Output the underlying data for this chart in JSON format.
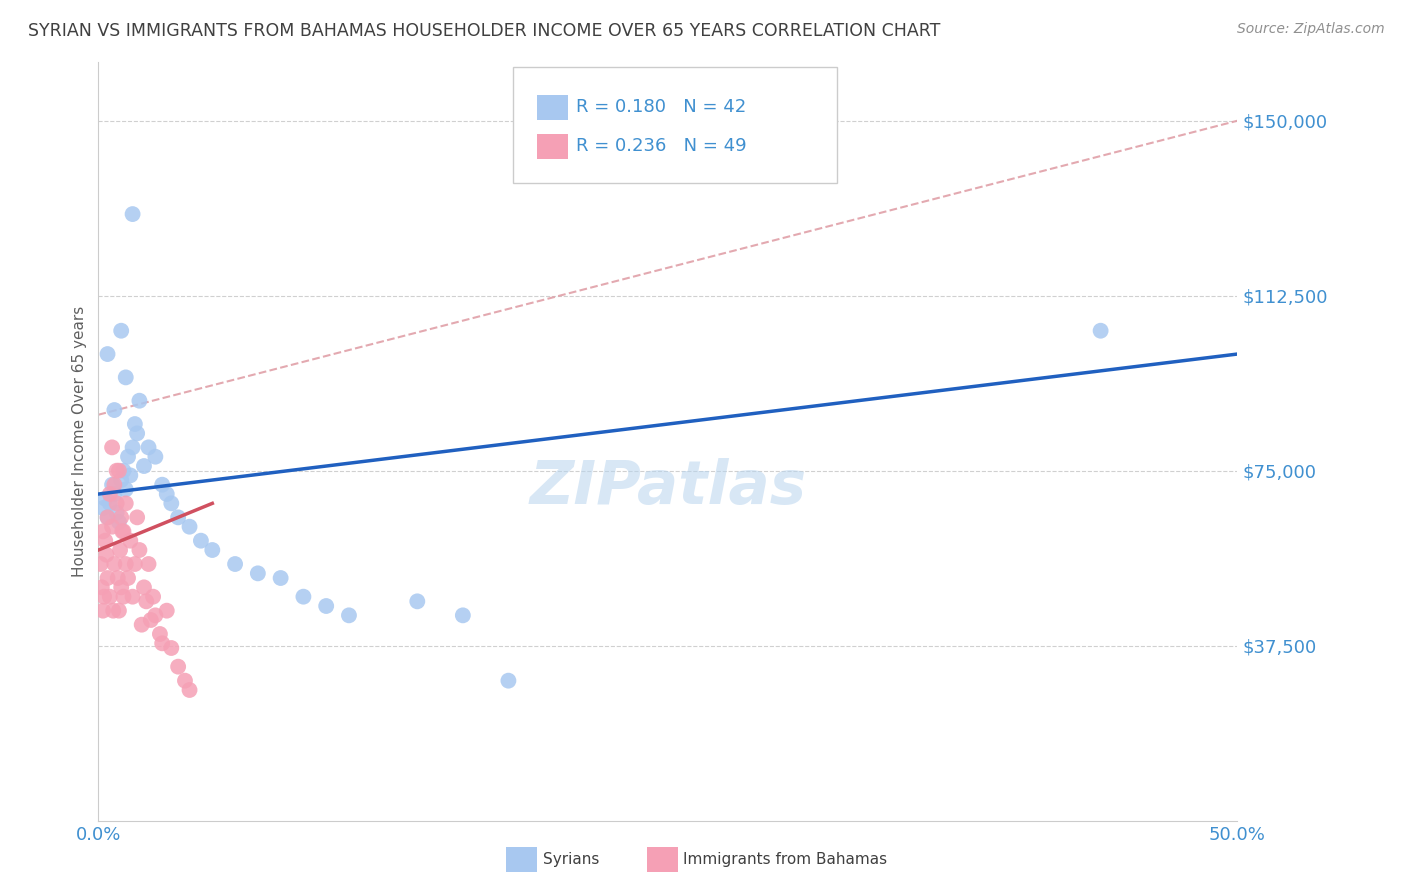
{
  "title": "SYRIAN VS IMMIGRANTS FROM BAHAMAS HOUSEHOLDER INCOME OVER 65 YEARS CORRELATION CHART",
  "source": "Source: ZipAtlas.com",
  "ylabel": "Householder Income Over 65 years",
  "xlim": [
    0.0,
    50.0
  ],
  "ylim": [
    0,
    162500
  ],
  "yticks": [
    0,
    37500,
    75000,
    112500,
    150000
  ],
  "ytick_labels": [
    "",
    "$37,500",
    "$75,000",
    "$112,500",
    "$150,000"
  ],
  "xticks": [
    0.0,
    10.0,
    20.0,
    30.0,
    40.0,
    50.0
  ],
  "xtick_labels": [
    "0.0%",
    "",
    "",
    "",
    "",
    "50.0%"
  ],
  "blue_R": 0.18,
  "blue_N": 42,
  "pink_R": 0.236,
  "pink_N": 49,
  "blue_color": "#a8c8f0",
  "pink_color": "#f5a0b5",
  "blue_line_color": "#2060c0",
  "pink_line_color": "#d05060",
  "ref_line_color": "#e0a0a8",
  "watermark": "ZIPatlas",
  "title_color": "#404040",
  "axis_label_color": "#606060",
  "tick_label_color": "#4090d0",
  "legend_color": "#4090d0",
  "blue_scatter_x": [
    0.2,
    0.3,
    0.4,
    0.4,
    0.5,
    0.6,
    0.7,
    0.7,
    0.8,
    0.9,
    1.0,
    1.0,
    1.1,
    1.2,
    1.2,
    1.3,
    1.4,
    1.5,
    1.6,
    1.7,
    1.8,
    2.0,
    2.2,
    2.5,
    2.8,
    3.0,
    3.2,
    3.5,
    4.0,
    4.5,
    5.0,
    6.0,
    7.0,
    8.0,
    9.0,
    10.0,
    11.0,
    14.0,
    16.0,
    18.0,
    44.0,
    1.5
  ],
  "blue_scatter_y": [
    67000,
    69000,
    65000,
    100000,
    68000,
    72000,
    70000,
    88000,
    66000,
    64000,
    73000,
    105000,
    75000,
    71000,
    95000,
    78000,
    74000,
    80000,
    85000,
    83000,
    90000,
    76000,
    80000,
    78000,
    72000,
    70000,
    68000,
    65000,
    63000,
    60000,
    58000,
    55000,
    53000,
    52000,
    48000,
    46000,
    44000,
    47000,
    44000,
    30000,
    105000,
    130000
  ],
  "pink_scatter_x": [
    0.1,
    0.15,
    0.2,
    0.2,
    0.25,
    0.3,
    0.35,
    0.4,
    0.4,
    0.5,
    0.5,
    0.6,
    0.65,
    0.7,
    0.7,
    0.8,
    0.85,
    0.9,
    0.95,
    1.0,
    1.0,
    1.1,
    1.1,
    1.2,
    1.3,
    1.4,
    1.5,
    1.6,
    1.7,
    1.8,
    1.9,
    2.0,
    2.1,
    2.2,
    2.3,
    2.4,
    2.5,
    2.7,
    2.8,
    3.0,
    3.2,
    3.5,
    3.8,
    4.0,
    0.6,
    0.8,
    0.9,
    1.05,
    1.2
  ],
  "pink_scatter_y": [
    55000,
    50000,
    62000,
    45000,
    48000,
    60000,
    57000,
    65000,
    52000,
    70000,
    48000,
    63000,
    45000,
    72000,
    55000,
    68000,
    52000,
    75000,
    58000,
    65000,
    50000,
    62000,
    48000,
    55000,
    52000,
    60000,
    48000,
    55000,
    65000,
    58000,
    42000,
    50000,
    47000,
    55000,
    43000,
    48000,
    44000,
    40000,
    38000,
    45000,
    37000,
    33000,
    30000,
    28000,
    80000,
    75000,
    45000,
    62000,
    68000
  ],
  "blue_line_x0": 0.0,
  "blue_line_y0": 70000,
  "blue_line_x1": 50.0,
  "blue_line_y1": 100000,
  "pink_line_x0": 0.0,
  "pink_line_y0": 58000,
  "pink_line_x1": 5.0,
  "pink_line_y1": 68000,
  "ref_line_x0": 0.0,
  "ref_line_y0": 87000,
  "ref_line_x1": 50.0,
  "ref_line_y1": 150000
}
